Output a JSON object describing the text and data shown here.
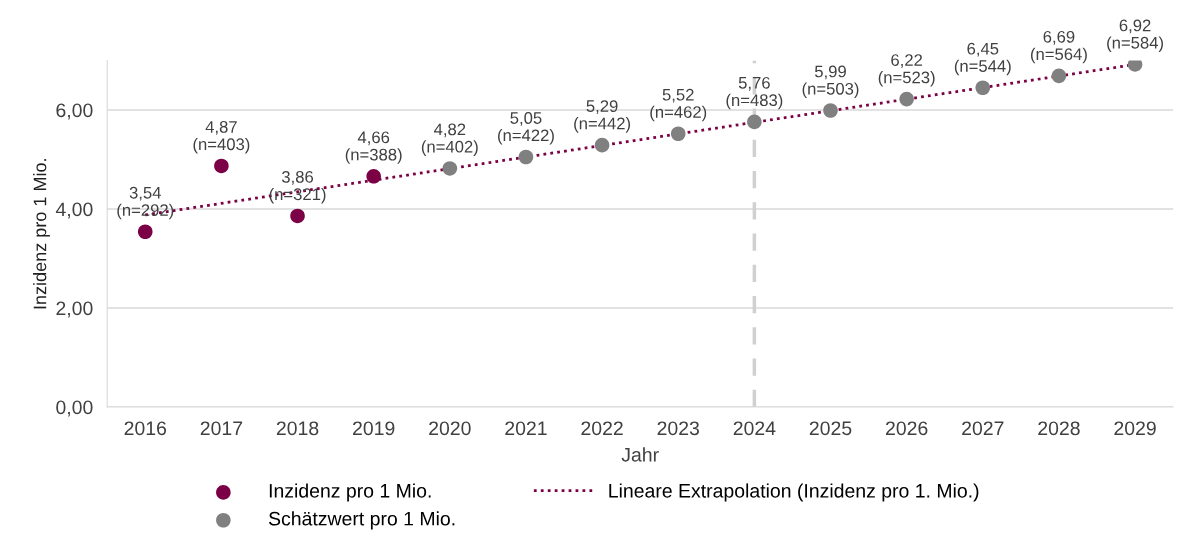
{
  "chart_data": {
    "type": "scatter",
    "xlabel": "Jahr",
    "ylabel": "Inzidenz pro 1 Mio.",
    "categories": [
      "2016",
      "2017",
      "2018",
      "2019",
      "2020",
      "2021",
      "2022",
      "2023",
      "2024",
      "2025",
      "2026",
      "2027",
      "2028",
      "2029"
    ],
    "ylim": [
      0,
      7.0
    ],
    "yticks": [
      {
        "value": 0,
        "label": "0,00"
      },
      {
        "value": 2,
        "label": "2,00"
      },
      {
        "value": 4,
        "label": "4,00"
      },
      {
        "value": 6,
        "label": "6,00"
      }
    ],
    "grid": "y",
    "legend": "bottom",
    "marker": "circle",
    "series": [
      {
        "name": "Inzidenz pro 1 Mio.",
        "color": "#7b0046",
        "values": [
          3.54,
          4.87,
          3.86,
          4.66,
          null,
          null,
          null,
          null,
          null,
          null,
          null,
          null,
          null,
          null
        ],
        "value_labels": [
          "3,54\n(n=292)",
          "4,87\n(n=403)",
          "3,86\n(n=321)",
          "4,66\n(n=388)",
          null,
          null,
          null,
          null,
          null,
          null,
          null,
          null,
          null,
          null
        ]
      },
      {
        "name": "Schätzwert pro 1 Mio.",
        "color": "#808080",
        "values": [
          null,
          null,
          null,
          null,
          4.82,
          5.05,
          5.29,
          5.52,
          5.76,
          5.99,
          6.22,
          6.45,
          6.69,
          6.92
        ],
        "value_labels": [
          null,
          null,
          null,
          null,
          "4,82\n(n=402)",
          "5,05\n(n=422)",
          "5,29\n(n=442)",
          "5,52\n(n=462)",
          "5,76\n(n=483)",
          "5,99\n(n=503)",
          "6,22\n(n=523)",
          "6,45\n(n=544)",
          "6,69\n(n=564)",
          "6,92\n(n=584)"
        ]
      },
      {
        "name": "Lineare Extrapolation (Inzidenz pro 1. Mio.)",
        "type": "line",
        "line_style": "dotted",
        "marker": "none",
        "color": "#7b0046",
        "values": [
          3.88,
          null,
          null,
          null,
          null,
          null,
          null,
          null,
          null,
          null,
          null,
          null,
          null,
          6.92
        ]
      }
    ],
    "ref_lines": [
      {
        "axis": "x",
        "value": "2024",
        "color": "#d0d0d0",
        "line_style": "dashed"
      }
    ]
  }
}
